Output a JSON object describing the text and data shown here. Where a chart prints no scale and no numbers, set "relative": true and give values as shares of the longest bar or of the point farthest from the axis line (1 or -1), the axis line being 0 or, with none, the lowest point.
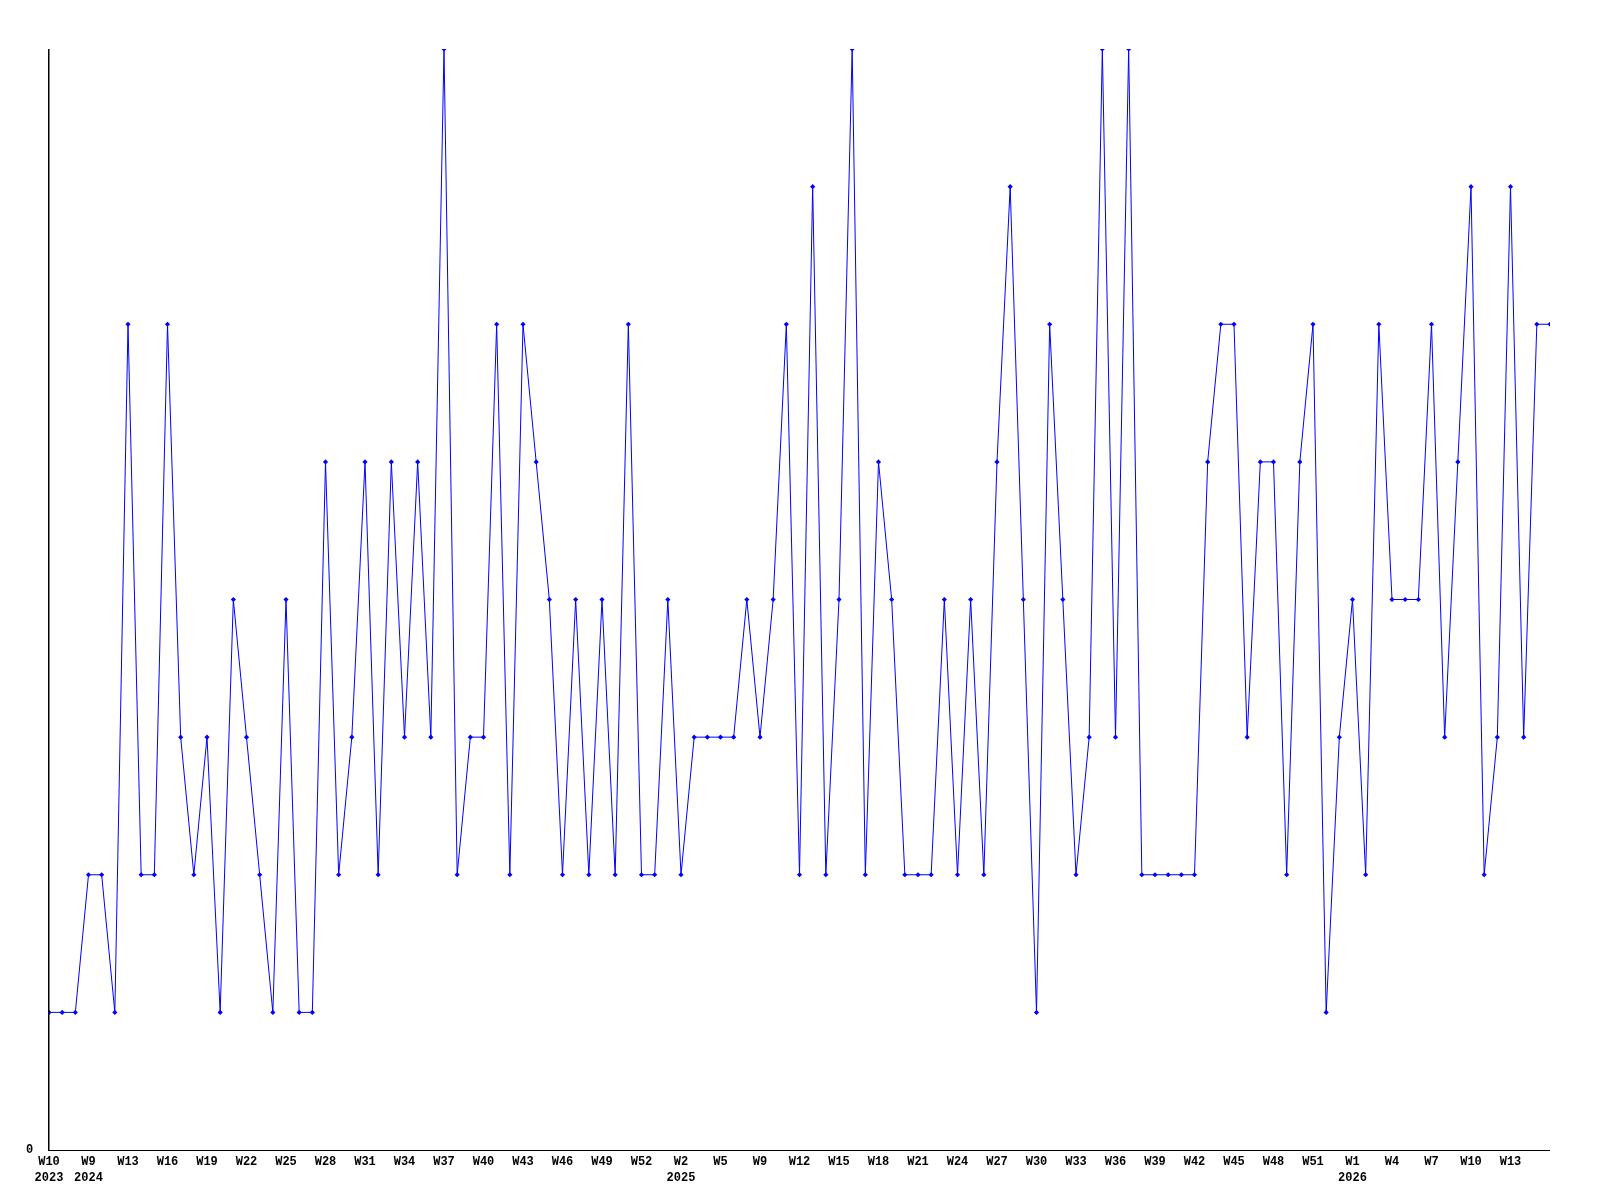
{
  "chart_data": {
    "type": "line",
    "relative": true,
    "color": "#0000ff",
    "marker": "diamond",
    "line_style": "solid",
    "grid": false,
    "legend": false,
    "annotations": [
      "0"
    ],
    "categories": [
      "W10\n2023",
      null,
      null,
      "W9\n2024",
      null,
      null,
      "W13",
      null,
      null,
      "W16",
      null,
      null,
      "W19",
      null,
      null,
      "W22",
      null,
      null,
      "W25",
      null,
      null,
      "W28",
      null,
      null,
      "W31",
      null,
      null,
      "W34",
      null,
      null,
      "W37",
      null,
      null,
      "W40",
      null,
      null,
      "W43",
      null,
      null,
      "W46",
      null,
      null,
      "W49",
      null,
      null,
      "W52",
      null,
      null,
      "W2\n2025",
      null,
      null,
      "W5",
      null,
      null,
      "W9",
      null,
      null,
      "W12",
      null,
      null,
      "W15",
      null,
      null,
      "W18",
      null,
      null,
      "W21",
      null,
      null,
      "W24",
      null,
      null,
      "W27",
      null,
      null,
      "W30",
      null,
      null,
      "W33",
      null,
      null,
      "W36",
      null,
      null,
      "W39",
      null,
      null,
      "W42",
      null,
      null,
      "W45",
      null,
      null,
      "W48",
      null,
      null,
      "W51",
      null,
      null,
      "W1\n2026",
      null,
      null,
      "W4",
      null,
      null,
      "W7",
      null,
      null,
      "W10",
      null,
      null,
      "W13",
      null,
      null,
      null
    ],
    "values": [
      0.125,
      0.125,
      0.125,
      0.25,
      0.25,
      0.125,
      0.75,
      0.25,
      0.25,
      0.75,
      0.375,
      0.25,
      0.375,
      0.125,
      0.5,
      0.375,
      0.25,
      0.125,
      0.5,
      0.125,
      0.125,
      0.625,
      0.25,
      0.375,
      0.625,
      0.25,
      0.625,
      0.375,
      0.625,
      0.375,
      1,
      0.25,
      0.375,
      0.375,
      0.75,
      0.25,
      0.75,
      0.625,
      0.5,
      0.25,
      0.5,
      0.25,
      0.5,
      0.25,
      0.75,
      0.25,
      0.25,
      0.5,
      0.25,
      0.375,
      0.375,
      0.375,
      0.375,
      0.5,
      0.375,
      0.5,
      0.75,
      0.25,
      0.875,
      0.25,
      0.5,
      1,
      0.25,
      0.625,
      0.5,
      0.25,
      0.25,
      0.25,
      0.5,
      0.25,
      0.5,
      0.25,
      0.625,
      0.875,
      0.5,
      0.125,
      0.75,
      0.5,
      0.25,
      0.375,
      1,
      0.375,
      1,
      0.25,
      0.25,
      0.25,
      0.25,
      0.25,
      0.625,
      0.75,
      0.75,
      0.375,
      0.625,
      0.625,
      0.25,
      0.625,
      0.75,
      0.125,
      0.375,
      0.5,
      0.25,
      0.75,
      0.5,
      0.5,
      0.5,
      0.75,
      0.375,
      0.625,
      0.875,
      0.25,
      0.375,
      0.875,
      0.375,
      0.75,
      0.75
    ]
  }
}
